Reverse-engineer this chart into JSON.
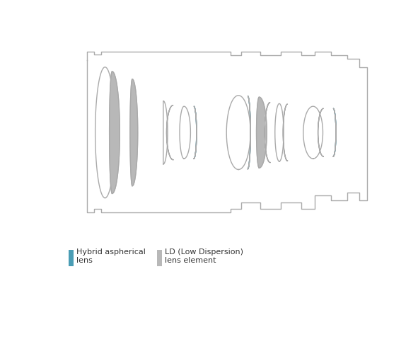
{
  "bg_color": "#ffffff",
  "outline_color": "#aaaaaa",
  "fill_gray": "#b8b8b8",
  "fill_white": "#ffffff",
  "fill_blue": "#4a9db5",
  "text_color": "#333333",
  "legend_blue_label": "Hybrid aspherical\nlens",
  "legend_gray_label": "LD (Low Dispersion)\nlens element",
  "figsize": [
    5.91,
    4.77
  ],
  "dpi": 100
}
